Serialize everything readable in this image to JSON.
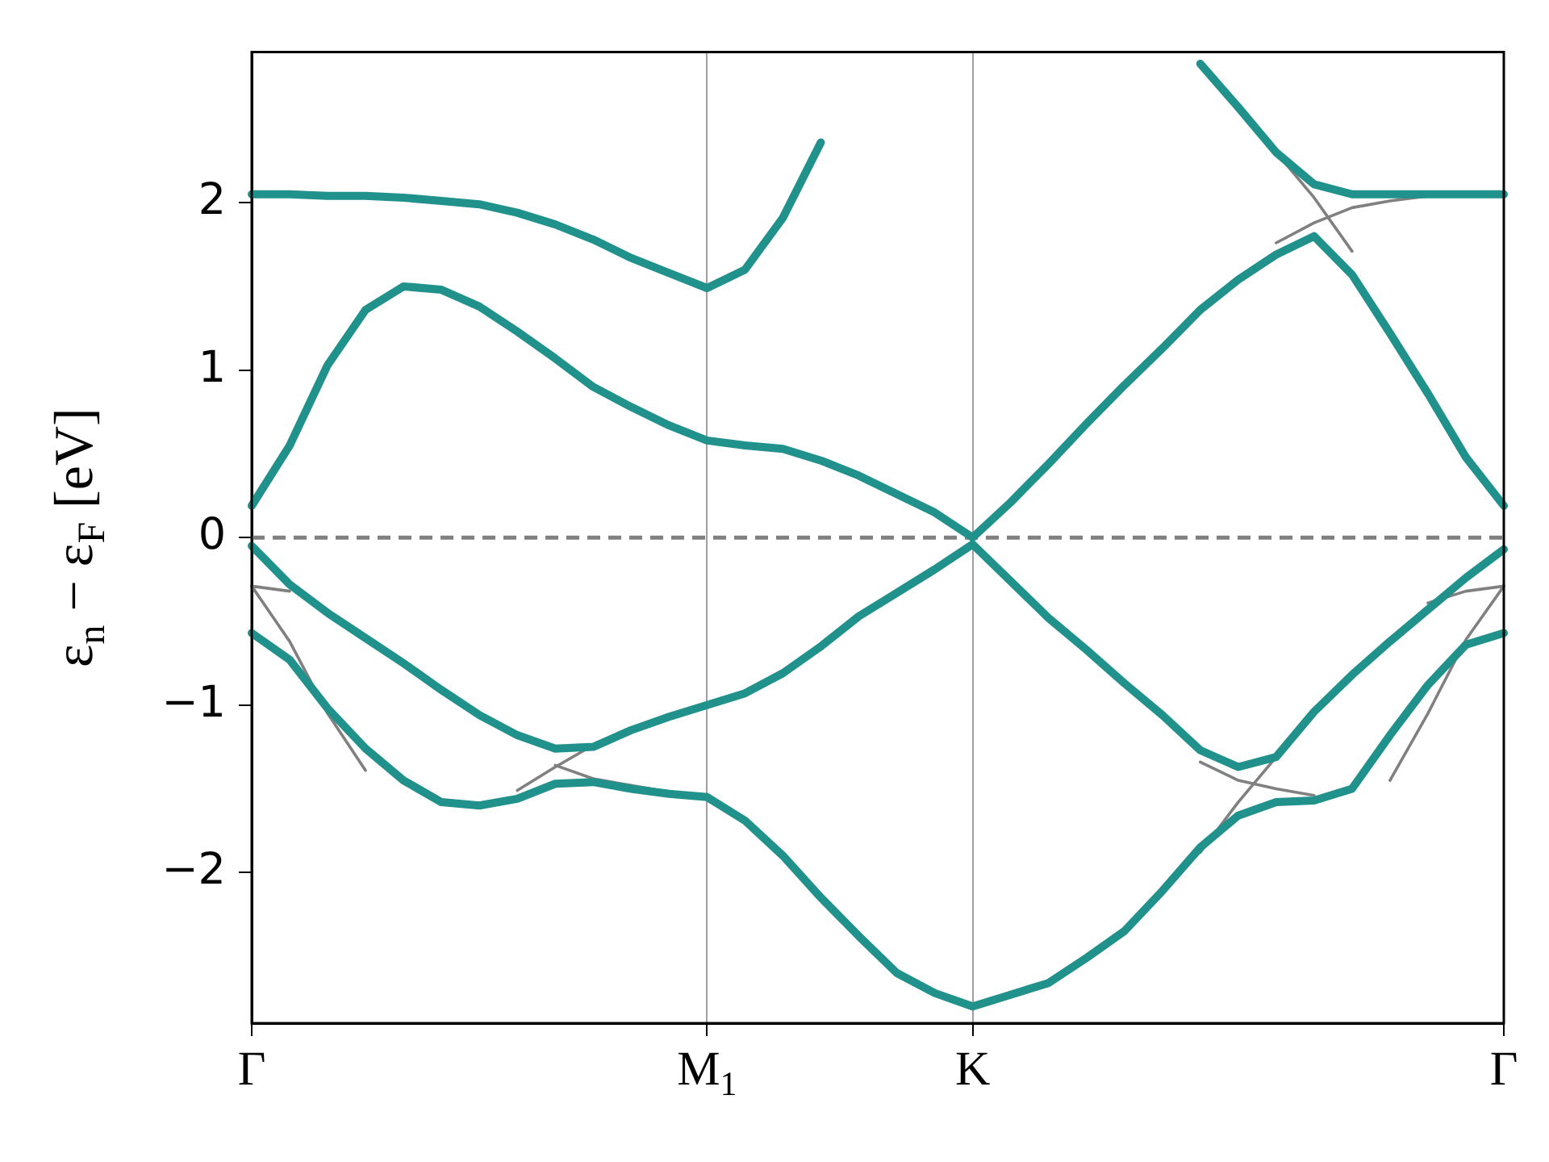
{
  "chart_data": {
    "type": "line",
    "ylabel": "ε$_{n}$ − ε$_{F}$ [eV]",
    "categories": [
      "Γ",
      null,
      null,
      null,
      null,
      null,
      null,
      null,
      null,
      null,
      null,
      null,
      "M$_{1}$",
      null,
      null,
      null,
      null,
      null,
      null,
      "K",
      null,
      null,
      null,
      null,
      null,
      null,
      null,
      null,
      null,
      null,
      null,
      null,
      null,
      "Γ"
    ],
    "ylim": [
      -2.9,
      2.9
    ],
    "yticks": [
      {
        "value": -2,
        "label": "−2"
      },
      {
        "value": -1,
        "label": "−1"
      },
      0,
      1,
      2
    ],
    "grid": "x",
    "ref_lines": [
      {
        "axis": "y",
        "value": 0,
        "color": "#808080",
        "line_style": "dashed"
      }
    ],
    "series": [
      {
        "color": "#808080",
        "values": [
          -0.29,
          -0.32,
          null,
          null,
          null,
          null,
          null,
          null,
          null,
          null,
          null,
          null,
          null,
          null,
          null,
          null,
          null,
          null,
          null,
          null,
          null,
          null,
          null,
          null,
          null,
          null,
          null,
          null,
          null,
          null,
          null,
          null,
          null,
          null
        ]
      },
      {
        "color": "#808080",
        "values": [
          -0.29,
          -0.62,
          -1.05,
          -1.39,
          null,
          null,
          null,
          null,
          null,
          null,
          null,
          null,
          null,
          null,
          null,
          null,
          null,
          null,
          null,
          null,
          null,
          null,
          null,
          null,
          null,
          null,
          null,
          null,
          null,
          null,
          null,
          null,
          null,
          null
        ]
      },
      {
        "color": "#808080",
        "values": [
          null,
          null,
          null,
          null,
          null,
          null,
          null,
          -1.51,
          -1.37,
          -1.24,
          null,
          null,
          null,
          null,
          null,
          null,
          null,
          null,
          null,
          null,
          null,
          null,
          null,
          null,
          null,
          null,
          null,
          null,
          null,
          null,
          null,
          null,
          null,
          null
        ]
      },
      {
        "color": "#808080",
        "values": [
          null,
          null,
          null,
          null,
          null,
          null,
          null,
          null,
          -1.36,
          -1.44,
          -1.48,
          -1.52,
          null,
          null,
          null,
          null,
          null,
          null,
          null,
          null,
          null,
          null,
          null,
          null,
          null,
          null,
          null,
          null,
          null,
          null,
          null,
          null,
          null,
          null
        ]
      },
      {
        "color": "#808080",
        "values": [
          null,
          null,
          null,
          null,
          null,
          null,
          null,
          null,
          null,
          null,
          null,
          null,
          null,
          null,
          null,
          null,
          null,
          null,
          null,
          null,
          null,
          null,
          null,
          null,
          null,
          -1.88,
          -1.58,
          -1.31,
          null,
          null,
          null,
          null,
          null,
          null
        ]
      },
      {
        "color": "#808080",
        "values": [
          null,
          null,
          null,
          null,
          null,
          null,
          null,
          null,
          null,
          null,
          null,
          null,
          null,
          null,
          null,
          null,
          null,
          null,
          null,
          null,
          null,
          null,
          null,
          null,
          null,
          -1.34,
          -1.45,
          -1.5,
          -1.54,
          null,
          null,
          null,
          null,
          null
        ]
      },
      {
        "color": "#808080",
        "values": [
          null,
          null,
          null,
          null,
          null,
          null,
          null,
          null,
          null,
          null,
          null,
          null,
          null,
          null,
          null,
          null,
          null,
          null,
          null,
          null,
          null,
          null,
          null,
          null,
          null,
          null,
          null,
          2.3,
          2.03,
          1.71,
          null,
          null,
          null,
          null
        ]
      },
      {
        "color": "#808080",
        "values": [
          null,
          null,
          null,
          null,
          null,
          null,
          null,
          null,
          null,
          null,
          null,
          null,
          null,
          null,
          null,
          null,
          null,
          null,
          null,
          null,
          null,
          null,
          null,
          null,
          null,
          null,
          null,
          1.76,
          1.88,
          1.97,
          2.01,
          2.04,
          null,
          null
        ]
      },
      {
        "color": "#808080",
        "values": [
          null,
          null,
          null,
          null,
          null,
          null,
          null,
          null,
          null,
          null,
          null,
          null,
          null,
          null,
          null,
          null,
          null,
          null,
          null,
          null,
          null,
          null,
          null,
          null,
          null,
          null,
          null,
          null,
          null,
          null,
          null,
          -0.39,
          -0.32,
          -0.29
        ]
      },
      {
        "color": "#808080",
        "values": [
          null,
          null,
          null,
          null,
          null,
          null,
          null,
          null,
          null,
          null,
          null,
          null,
          null,
          null,
          null,
          null,
          null,
          null,
          null,
          null,
          null,
          null,
          null,
          null,
          null,
          null,
          null,
          null,
          null,
          null,
          -1.45,
          -1.05,
          -0.61,
          -0.29
        ]
      },
      {
        "color": "#21918c",
        "values": [
          2.05,
          2.05,
          2.04,
          2.04,
          2.03,
          2.01,
          1.99,
          1.94,
          1.87,
          1.78,
          1.67,
          1.58,
          1.49,
          1.6,
          1.91,
          2.36,
          null,
          null,
          null,
          null,
          null,
          null,
          null,
          null,
          null,
          2.83,
          2.57,
          2.3,
          2.11,
          2.05,
          2.05,
          2.05,
          2.05,
          2.05
        ]
      },
      {
        "color": "#21918c",
        "values": [
          0.19,
          0.55,
          1.03,
          1.36,
          1.5,
          1.48,
          1.38,
          1.23,
          1.07,
          0.9,
          0.78,
          0.67,
          0.58,
          0.55,
          0.53,
          0.46,
          0.37,
          0.26,
          0.15,
          0,
          0.21,
          0.44,
          0.68,
          0.91,
          1.13,
          1.36,
          1.54,
          1.69,
          1.8,
          1.57,
          1.22,
          0.86,
          0.48,
          0.19
        ]
      },
      {
        "color": "#21918c",
        "values": [
          -0.05,
          -0.28,
          -0.45,
          -0.6,
          -0.75,
          -0.91,
          -1.06,
          -1.18,
          -1.26,
          -1.25,
          -1.15,
          -1.07,
          -1.0,
          -0.93,
          -0.81,
          -0.65,
          -0.47,
          -0.33,
          -0.19,
          -0.04,
          -0.26,
          -0.48,
          -0.67,
          -0.87,
          -1.06,
          -1.27,
          -1.37,
          -1.31,
          -1.04,
          -0.82,
          -0.62,
          -0.43,
          -0.24,
          -0.07
        ]
      },
      {
        "color": "#21918c",
        "values": [
          -0.57,
          -0.73,
          -1.02,
          -1.26,
          -1.45,
          -1.58,
          -1.6,
          -1.56,
          -1.47,
          -1.46,
          -1.5,
          -1.53,
          -1.55,
          -1.69,
          -1.9,
          -2.15,
          -2.38,
          -2.6,
          -2.72,
          -2.8,
          -2.73,
          -2.66,
          -2.51,
          -2.35,
          -2.11,
          -1.85,
          -1.66,
          -1.58,
          -1.57,
          -1.5,
          -1.18,
          -0.88,
          -0.64,
          -0.57
        ]
      }
    ]
  }
}
